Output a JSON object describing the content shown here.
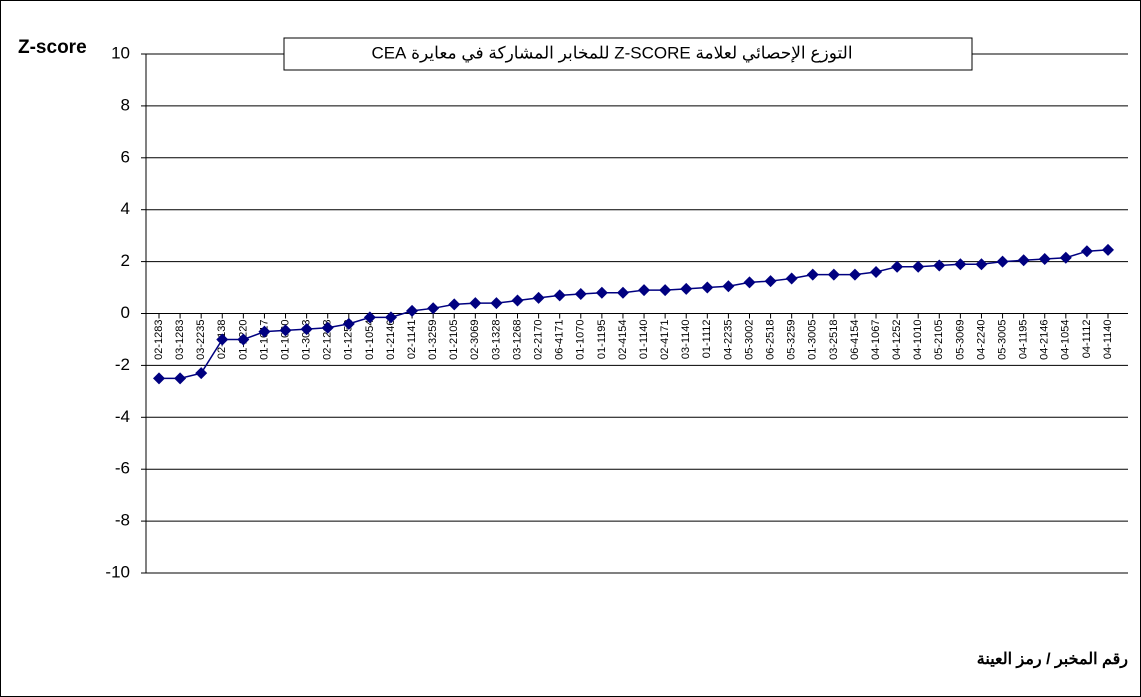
{
  "chart_data": {
    "type": "line",
    "title": "التوزع الإحصائي لعلامة Z-SCORE للمخابر المشاركة في معايرة CEA",
    "y_label": "Z-score",
    "x_label": "رقم المخبر / رمز العينة",
    "categories": [
      "02-1283",
      "03-1283",
      "03-2235",
      "02-1138",
      "01-2220",
      "01-1017",
      "01-1060",
      "01-3003",
      "02-1268",
      "01-1252",
      "01-1054",
      "01-2146",
      "02-1141",
      "01-3259",
      "01-2105",
      "02-3069",
      "03-1328",
      "03-1268",
      "02-2170",
      "06-4171",
      "01-1070",
      "01-1195",
      "02-4154",
      "01-1140",
      "02-4171",
      "03-1140",
      "01-1112",
      "04-2235",
      "05-3002",
      "06-2518",
      "05-3259",
      "01-3005",
      "03-2518",
      "06-4154",
      "04-1067",
      "04-1252",
      "04-1010",
      "05-2105",
      "05-3069",
      "04-2240",
      "05-3005",
      "04-1195",
      "04-2146",
      "04-1054",
      "04-1112",
      "04-1140"
    ],
    "series": [
      {
        "name": "Z-score",
        "color": "#000080",
        "values": [
          -2.5,
          -2.5,
          -2.3,
          -1.0,
          -1.0,
          -0.7,
          -0.65,
          -0.6,
          -0.55,
          -0.4,
          -0.15,
          -0.15,
          0.1,
          0.2,
          0.35,
          0.4,
          0.4,
          0.5,
          0.6,
          0.7,
          0.75,
          0.8,
          0.8,
          0.9,
          0.9,
          0.95,
          1.0,
          1.05,
          1.2,
          1.25,
          1.35,
          1.5,
          1.5,
          1.5,
          1.6,
          1.8,
          1.8,
          1.85,
          1.9,
          1.9,
          2.0,
          2.05,
          2.1,
          2.15,
          2.4,
          2.45
        ]
      }
    ],
    "ylim": [
      -10,
      10
    ],
    "yticks": [
      -10,
      -8,
      -6,
      -4,
      -2,
      0,
      2,
      4,
      6,
      8,
      10
    ],
    "grid": true
  }
}
